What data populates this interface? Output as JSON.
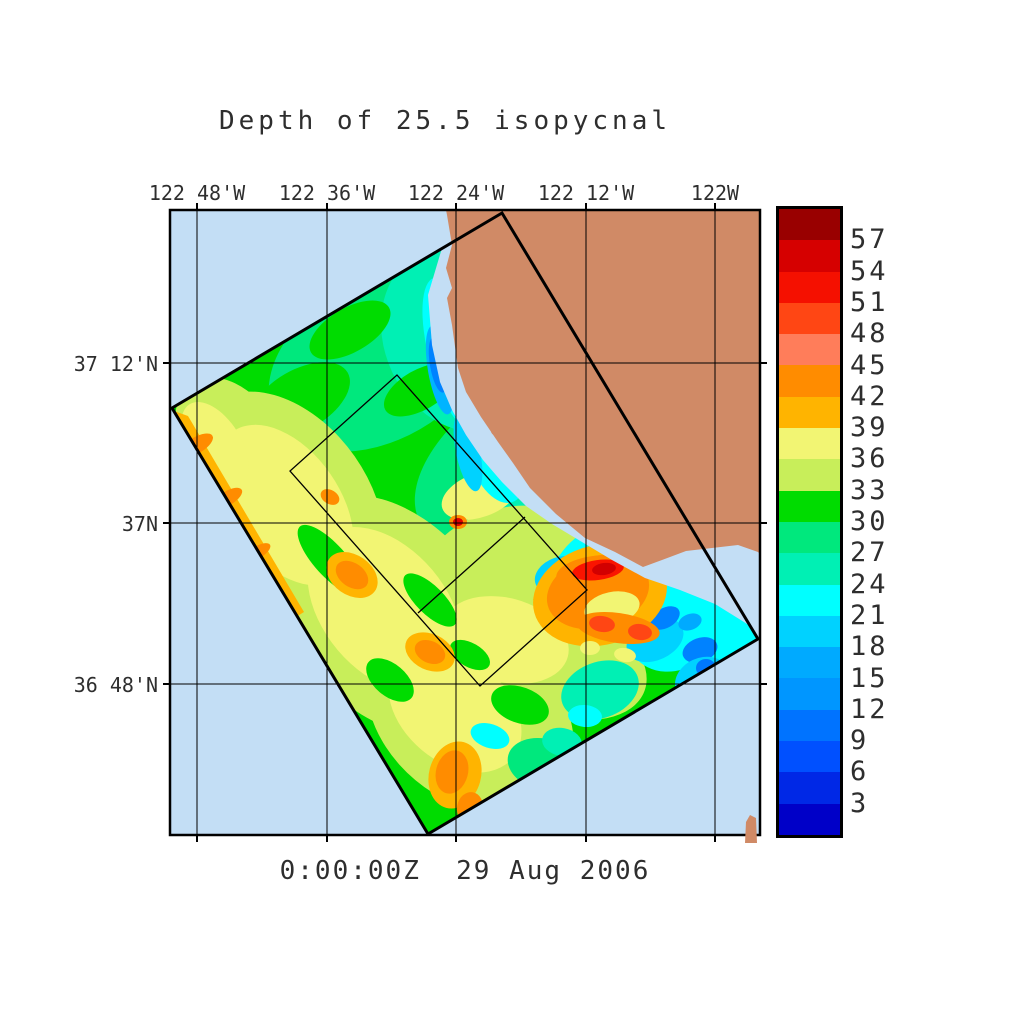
{
  "title": "Depth of 25.5 isopycnal",
  "timestamp_label": "0:00:00Z  29 Aug 2006",
  "axes": {
    "top_labels": [
      "122 48'W",
      "122 36'W",
      "122 24'W",
      "122 12'W",
      "122W"
    ],
    "left_labels": [
      "37 12'N",
      "37N",
      "36 48'N"
    ]
  },
  "colorbar": {
    "tick_labels": [
      "57",
      "54",
      "51",
      "48",
      "45",
      "42",
      "39",
      "36",
      "33",
      "30",
      "27",
      "24",
      "21",
      "18",
      "15",
      "12",
      "9",
      "6",
      "3"
    ],
    "segments": [
      {
        "range": "57-60",
        "color": "#990000"
      },
      {
        "range": "54-57",
        "color": "#D60000"
      },
      {
        "range": "51-54",
        "color": "#F51000"
      },
      {
        "range": "48-51",
        "color": "#FF4614"
      },
      {
        "range": "45-48",
        "color": "#FF7D5A"
      },
      {
        "range": "42-45",
        "color": "#FF8C00"
      },
      {
        "range": "39-42",
        "color": "#FFB400"
      },
      {
        "range": "36-39",
        "color": "#F2F573"
      },
      {
        "range": "33-36",
        "color": "#C8EE5A"
      },
      {
        "range": "30-33",
        "color": "#00DC00"
      },
      {
        "range": "27-30",
        "color": "#00E87D"
      },
      {
        "range": "24-27",
        "color": "#00F0B4"
      },
      {
        "range": "21-24",
        "color": "#00FFFF"
      },
      {
        "range": "18-21",
        "color": "#00D2FF"
      },
      {
        "range": "15-18",
        "color": "#00AAFF"
      },
      {
        "range": "12-15",
        "color": "#0096FF"
      },
      {
        "range": "9-12",
        "color": "#0073FF"
      },
      {
        "range": "6-9",
        "color": "#0050FF"
      },
      {
        "range": "3-6",
        "color": "#0028E6"
      },
      {
        "range": "0-3",
        "color": "#0000C8"
      }
    ]
  },
  "map": {
    "ocean_color": "#C3DEF5",
    "land_color": "#D08A66",
    "field_base_color": "#00DC00",
    "outline_color": "#000000",
    "region": "California coast / Monterey Bay",
    "overlays": [
      "model-domain rotated rectangle",
      "nested domain boxes"
    ]
  },
  "chart_data": {
    "type": "heatmap",
    "title": "Depth of 25.5 isopycnal",
    "xlabel_ticks": [
      "122 48'W",
      "122 36'W",
      "122 24'W",
      "122 12'W",
      "122W"
    ],
    "ylabel_ticks": [
      "37 12'N",
      "37N",
      "36 48'N"
    ],
    "colorbar_ticks": [
      57,
      54,
      51,
      48,
      45,
      42,
      39,
      36,
      33,
      30,
      27,
      24,
      21,
      18,
      15,
      12,
      9,
      6,
      3
    ],
    "colorbar_range": [
      0,
      60
    ],
    "timestamp": "0:00:00Z  29 Aug 2006",
    "legend_position": "right",
    "grid": true
  }
}
